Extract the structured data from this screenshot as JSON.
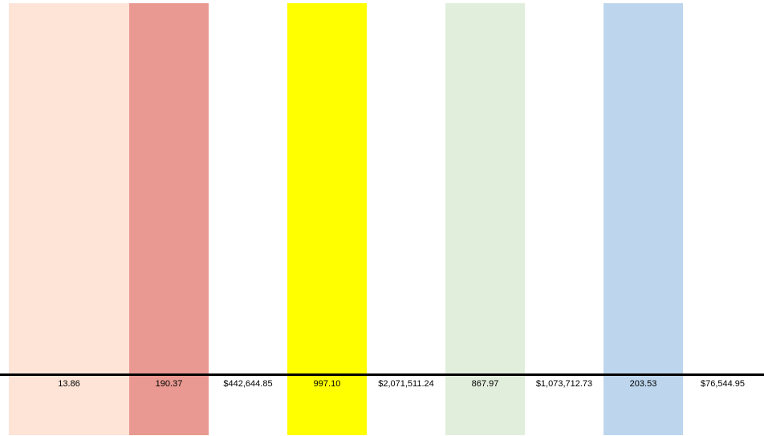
{
  "columns": [
    {
      "name": "col-1",
      "color": "#FDE4D7",
      "value": "13.86"
    },
    {
      "name": "col-2",
      "color": "#E99991",
      "value": "190.37"
    },
    {
      "name": "col-3",
      "color": "#FFFFFF",
      "value": "$442,644.85"
    },
    {
      "name": "col-4",
      "color": "#FFFF00",
      "value": "997.10"
    },
    {
      "name": "col-5",
      "color": "#FFFFFF",
      "value": "$2,071,511.24"
    },
    {
      "name": "col-6",
      "color": "#E2EEDC",
      "value": "867.97"
    },
    {
      "name": "col-7",
      "color": "#FFFFFF",
      "value": "$1,073,712.73"
    },
    {
      "name": "col-8",
      "color": "#BDD6EE",
      "value": "203.53"
    },
    {
      "name": "col-9",
      "color": "#FFFFFF",
      "value": "$76,544.95"
    }
  ]
}
